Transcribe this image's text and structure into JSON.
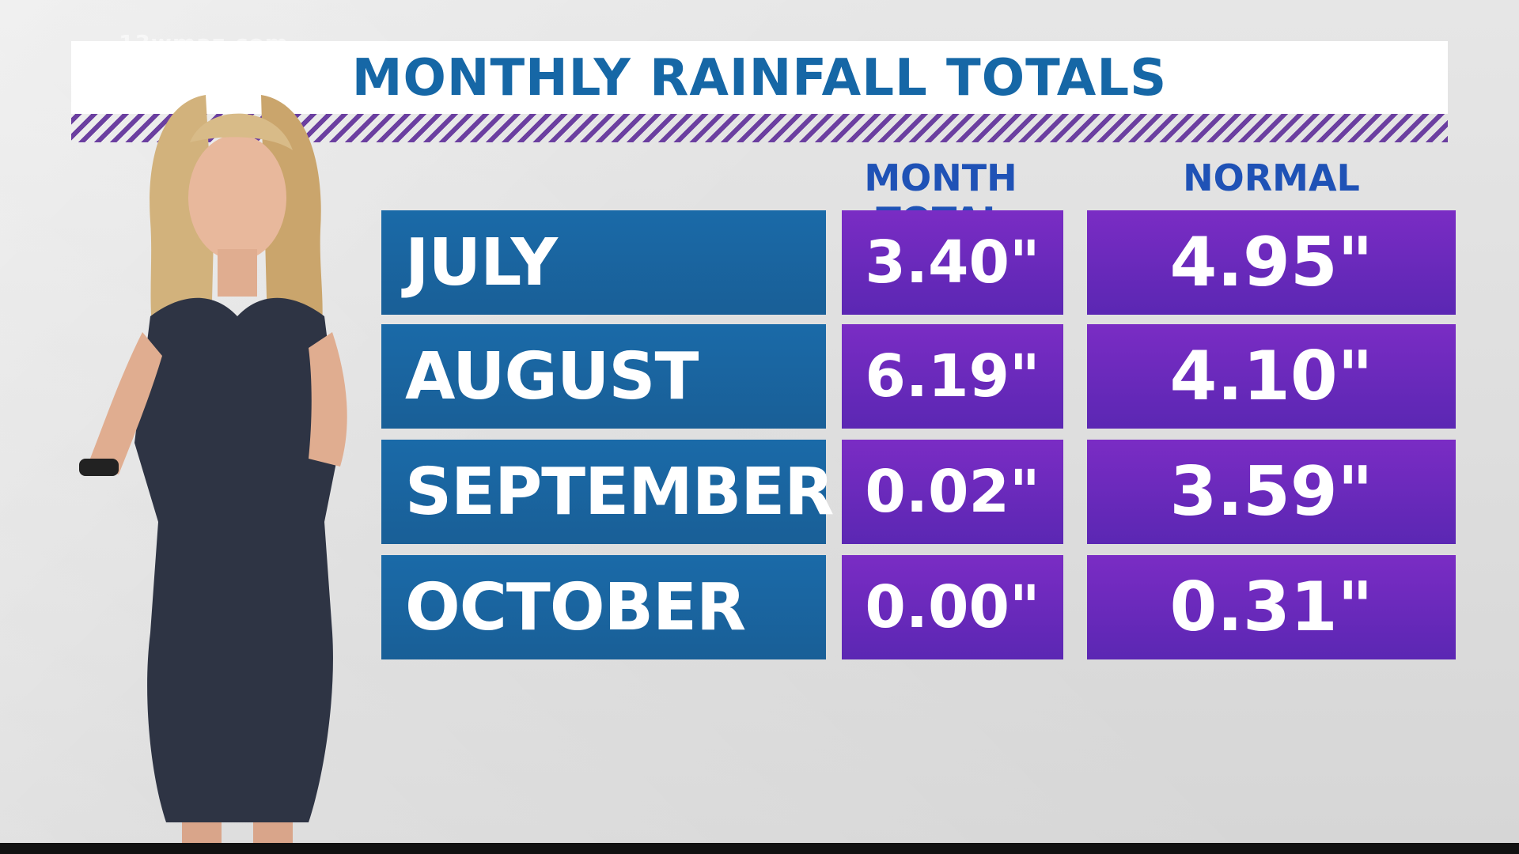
{
  "watermark": "13wmaz.com",
  "title": "MONTHLY RAINFALL TOTALS",
  "headers": {
    "month_total": "MONTH TOTAL",
    "normal": "NORMAL"
  },
  "rows": [
    {
      "month": "JULY",
      "total": "3.40\"",
      "normal": "4.95\""
    },
    {
      "month": "AUGUST",
      "total": "6.19\"",
      "normal": "4.10\""
    },
    {
      "month": "SEPTEMBER",
      "total": "0.02\"",
      "normal": "3.59\""
    },
    {
      "month": "OCTOBER",
      "total": "0.00\"",
      "normal": "0.31\""
    }
  ],
  "colors": {
    "title": "#1667a6",
    "header": "#1f52b6",
    "month_cell": "#1a6aa8",
    "value_cell": "#6a2abd",
    "stripe": "#6b3fa0"
  }
}
